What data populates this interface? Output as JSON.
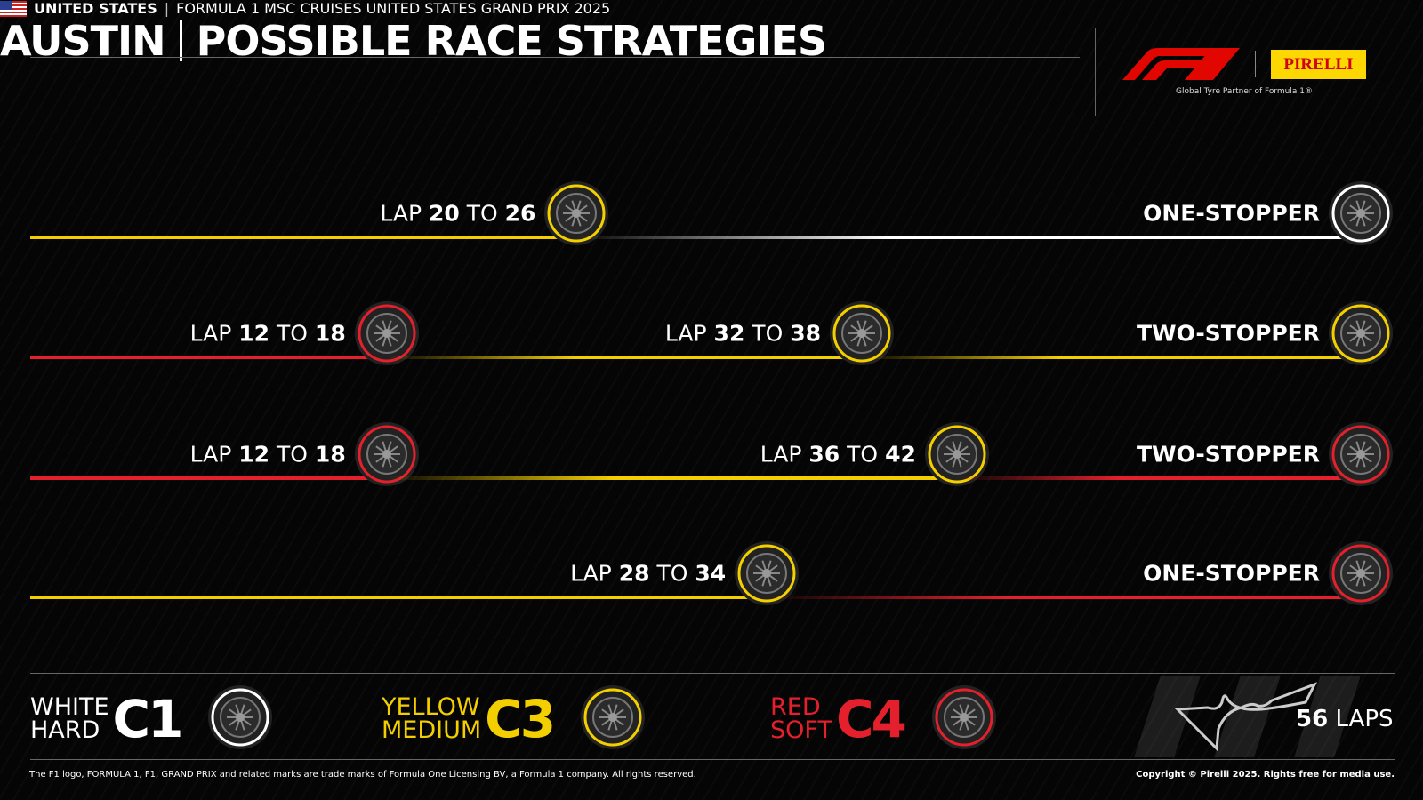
{
  "header": {
    "country": "UNITED STATES",
    "event": "FORMULA 1 MSC CRUISES UNITED STATES GRAND PRIX 2025",
    "city": "AUSTIN",
    "title": "POSSIBLE RACE STRATEGIES"
  },
  "logos": {
    "f1": "F1",
    "pirelli": "PIRELLI",
    "partner": "Global Tyre Partner of Formula 1®"
  },
  "colors": {
    "hard": "#ffffff",
    "medium": "#f4cf00",
    "soft": "#e3202b"
  },
  "total_laps": 56,
  "strategies": [
    {
      "name": "ONE-STOPPER",
      "stints": [
        "medium",
        "hard"
      ],
      "pits": [
        {
          "prefix": "LAP",
          "from": "20",
          "mid": "TO",
          "to": "26"
        }
      ]
    },
    {
      "name": "TWO-STOPPER",
      "stints": [
        "soft",
        "medium",
        "medium"
      ],
      "pits": [
        {
          "prefix": "LAP",
          "from": "12",
          "mid": "TO",
          "to": "18"
        },
        {
          "prefix": "LAP",
          "from": "32",
          "mid": "TO",
          "to": "38"
        }
      ]
    },
    {
      "name": "TWO-STOPPER",
      "stints": [
        "soft",
        "medium",
        "soft"
      ],
      "pits": [
        {
          "prefix": "LAP",
          "from": "12",
          "mid": "TO",
          "to": "18"
        },
        {
          "prefix": "LAP",
          "from": "36",
          "mid": "TO",
          "to": "42"
        }
      ]
    },
    {
      "name": "ONE-STOPPER",
      "stints": [
        "medium",
        "soft"
      ],
      "pits": [
        {
          "prefix": "LAP",
          "from": "28",
          "mid": "TO",
          "to": "34"
        }
      ]
    }
  ],
  "legend": [
    {
      "compound": "hard",
      "color_word": "WHITE",
      "type_word": "HARD",
      "code": "C1"
    },
    {
      "compound": "medium",
      "color_word": "YELLOW",
      "type_word": "MEDIUM",
      "code": "C3"
    },
    {
      "compound": "soft",
      "color_word": "RED",
      "type_word": "SOFT",
      "code": "C4"
    }
  ],
  "laps": {
    "number": "56",
    "label": "LAPS"
  },
  "footer": {
    "left": "The F1 logo, FORMULA 1, F1, GRAND PRIX and related marks are trade marks of Formula One Licensing BV, a Formula 1 company. All rights reserved.",
    "right": "Copyright © Pirelli 2025. Rights free for media use."
  }
}
